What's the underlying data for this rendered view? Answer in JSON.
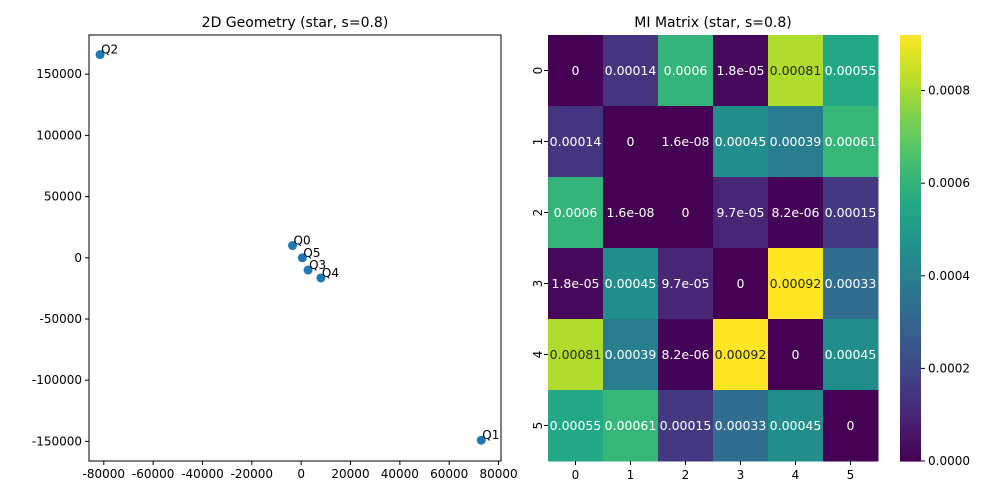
{
  "chart_data": [
    {
      "type": "scatter",
      "title": "2D Geometry (star, s=0.8)",
      "xlabel": "",
      "ylabel": "",
      "xlim": [
        -86000,
        81000
      ],
      "ylim": [
        -166000,
        182000
      ],
      "xticks": [
        -80000,
        -60000,
        -40000,
        -20000,
        0,
        20000,
        40000,
        60000,
        80000
      ],
      "yticks": [
        -150000,
        -100000,
        -50000,
        0,
        50000,
        100000,
        150000
      ],
      "grid": false,
      "point_color": "#1f77b4",
      "points": [
        {
          "label": "Q0",
          "x": -3500,
          "y": 10000
        },
        {
          "label": "Q1",
          "x": 73000,
          "y": -149000
        },
        {
          "label": "Q2",
          "x": -81500,
          "y": 166000
        },
        {
          "label": "Q3",
          "x": 2800,
          "y": -10000
        },
        {
          "label": "Q4",
          "x": 8000,
          "y": -16500
        },
        {
          "label": "Q5",
          "x": 500,
          "y": 0
        }
      ]
    },
    {
      "type": "heatmap",
      "title": "MI Matrix (star, s=0.8)",
      "colormap": "viridis",
      "vmin": 0,
      "vmax": 0.00092,
      "row_labels": [
        "0",
        "1",
        "2",
        "3",
        "4",
        "5"
      ],
      "col_labels": [
        "0",
        "1",
        "2",
        "3",
        "4",
        "5"
      ],
      "values": [
        [
          0,
          0.00014,
          0.0006,
          1.8e-05,
          0.00081,
          0.00055
        ],
        [
          0.00014,
          0,
          1.6e-08,
          0.00045,
          0.00039,
          0.00061
        ],
        [
          0.0006,
          1.6e-08,
          0,
          9.7e-05,
          8.2e-06,
          0.00015
        ],
        [
          1.8e-05,
          0.00045,
          9.7e-05,
          0,
          0.00092,
          0.00033
        ],
        [
          0.00081,
          0.00039,
          8.2e-06,
          0.00092,
          0,
          0.00045
        ],
        [
          0.00055,
          0.00061,
          0.00015,
          0.00033,
          0.00045,
          0
        ]
      ],
      "annotations": [
        [
          "0",
          "0.00014",
          "0.0006",
          "1.8e-05",
          "0.00081",
          "0.00055"
        ],
        [
          "0.00014",
          "0",
          "1.6e-08",
          "0.00045",
          "0.00039",
          "0.00061"
        ],
        [
          "0.0006",
          "1.6e-08",
          "0",
          "9.7e-05",
          "8.2e-06",
          "0.00015"
        ],
        [
          "1.8e-05",
          "0.00045",
          "9.7e-05",
          "0",
          "0.00092",
          "0.00033"
        ],
        [
          "0.00081",
          "0.00039",
          "8.2e-06",
          "0.00092",
          "0",
          "0.00045"
        ],
        [
          "0.00055",
          "0.00061",
          "0.00015",
          "0.00033",
          "0.00045",
          "0"
        ]
      ],
      "colorbar_ticks": [
        0,
        0.0002,
        0.0004,
        0.0006,
        0.0008
      ],
      "colorbar_tick_labels": [
        "0.0000",
        "0.0002",
        "0.0004",
        "0.0006",
        "0.0008"
      ]
    }
  ]
}
